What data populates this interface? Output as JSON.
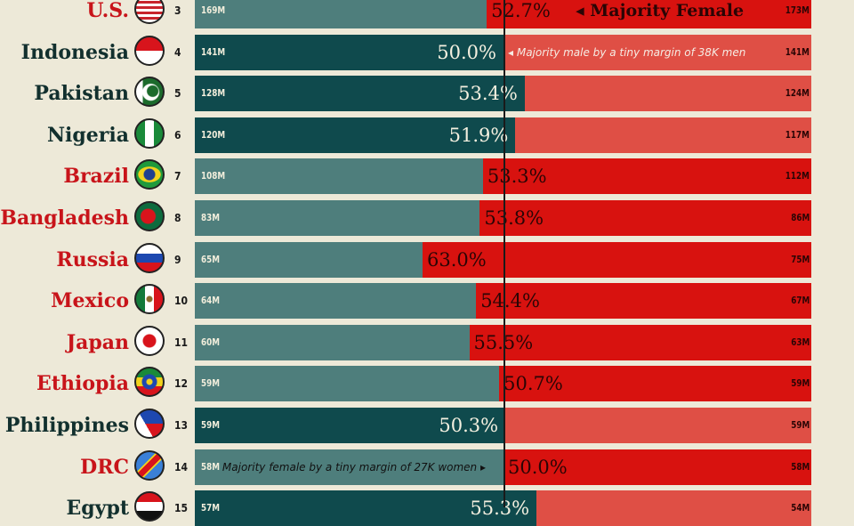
{
  "chart_data": {
    "type": "bar",
    "title": "",
    "xlabel": "",
    "ylabel": "",
    "colors": {
      "male_dark": "#0f4a4d",
      "male_light": "#4e7e7c",
      "female_bright": "#d8120f",
      "female_light": "#df4f45",
      "country_female": "#c8141a",
      "country_male": "#12302e"
    },
    "rows": [
      {
        "rank": "3",
        "country": "U.S.",
        "flag": "us-flag",
        "male": "169M",
        "female": "173M",
        "pct": "52.7%",
        "majority": "female",
        "note": "◂ Majority Female",
        "note_style": "big"
      },
      {
        "rank": "4",
        "country": "Indonesia",
        "flag": "indonesia-flag",
        "male": "141M",
        "female": "141M",
        "pct": "50.0%",
        "majority": "male",
        "note": "◂ Majority male by a tiny margin of 38K men",
        "note_style": "small"
      },
      {
        "rank": "5",
        "country": "Pakistan",
        "flag": "pakistan-flag",
        "male": "128M",
        "female": "124M",
        "pct": "53.4%",
        "majority": "male"
      },
      {
        "rank": "6",
        "country": "Nigeria",
        "flag": "nigeria-flag",
        "male": "120M",
        "female": "117M",
        "pct": "51.9%",
        "majority": "male"
      },
      {
        "rank": "7",
        "country": "Brazil",
        "flag": "brazil-flag",
        "male": "108M",
        "female": "112M",
        "pct": "53.3%",
        "majority": "female"
      },
      {
        "rank": "8",
        "country": "Bangladesh",
        "flag": "bangladesh-flag",
        "male": "83M",
        "female": "86M",
        "pct": "53.8%",
        "majority": "female"
      },
      {
        "rank": "9",
        "country": "Russia",
        "flag": "russia-flag",
        "male": "65M",
        "female": "75M",
        "pct": "63.0%",
        "majority": "female"
      },
      {
        "rank": "10",
        "country": "Mexico",
        "flag": "mexico-flag",
        "male": "64M",
        "female": "67M",
        "pct": "54.4%",
        "majority": "female"
      },
      {
        "rank": "11",
        "country": "Japan",
        "flag": "japan-flag",
        "male": "60M",
        "female": "63M",
        "pct": "55.5%",
        "majority": "female"
      },
      {
        "rank": "12",
        "country": "Ethiopia",
        "flag": "ethiopia-flag",
        "male": "59M",
        "female": "59M",
        "pct": "50.7%",
        "majority": "female"
      },
      {
        "rank": "13",
        "country": "Philippines",
        "flag": "philippines-flag",
        "male": "59M",
        "female": "59M",
        "pct": "50.3%",
        "majority": "male"
      },
      {
        "rank": "14",
        "country": "DRC",
        "flag": "drc-flag",
        "male": "58M",
        "female": "58M",
        "pct": "50.0%",
        "majority": "female",
        "note": "Majority female by a tiny margin of 27K women ▸",
        "note_style": "small-left"
      },
      {
        "rank": "15",
        "country": "Egypt",
        "flag": "egypt-flag",
        "male": "57M",
        "female": "54M",
        "pct": "55.3%",
        "majority": "male"
      }
    ]
  }
}
